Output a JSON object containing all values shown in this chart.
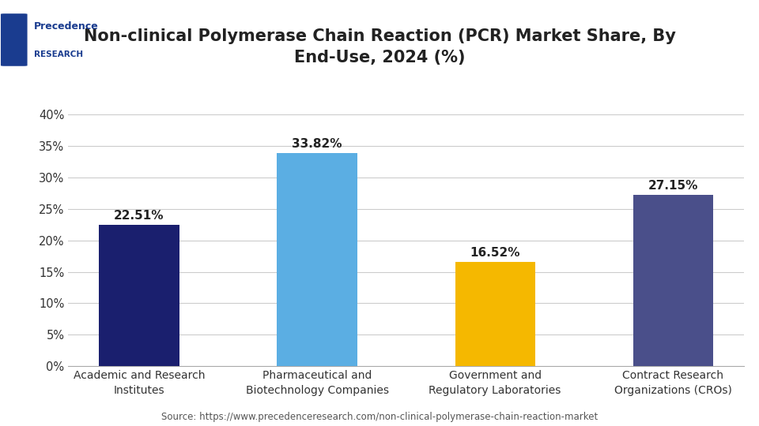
{
  "title": "Non-clinical Polymerase Chain Reaction (PCR) Market Share, By\nEnd-Use, 2024 (%)",
  "categories": [
    "Academic and Research\nInstitutes",
    "Pharmaceutical and\nBiotechnology Companies",
    "Government and\nRegulatory Laboratories",
    "Contract Research\nOrganizations (CROs)"
  ],
  "values": [
    22.51,
    33.82,
    16.52,
    27.15
  ],
  "labels": [
    "22.51%",
    "33.82%",
    "16.52%",
    "27.15%"
  ],
  "bar_colors": [
    "#1a1f6e",
    "#5baee3",
    "#f5b800",
    "#4a4f8a"
  ],
  "ylim": [
    0,
    40
  ],
  "yticks": [
    0,
    5,
    10,
    15,
    20,
    25,
    30,
    35,
    40
  ],
  "ytick_labels": [
    "0%",
    "5%",
    "10%",
    "15%",
    "20%",
    "25%",
    "30%",
    "35%",
    "40%"
  ],
  "background_color": "#ffffff",
  "plot_bg_color": "#ffffff",
  "grid_color": "#cccccc",
  "source_text": "Source: https://www.precedenceresearch.com/non-clinical-polymerase-chain-reaction-market",
  "title_fontsize": 15,
  "label_fontsize": 11,
  "tick_fontsize": 10.5,
  "source_fontsize": 8.5,
  "border_color": "#aaaaaa",
  "logo_text1": "Precedence",
  "logo_text2": "RESEARCH"
}
